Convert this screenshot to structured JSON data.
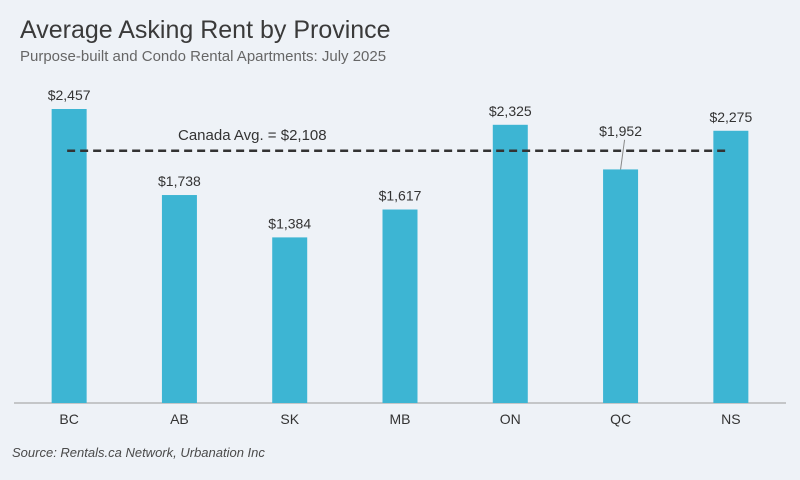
{
  "title": "Average Asking Rent by Province",
  "subtitle": "Purpose-built and Condo Rental Apartments: July 2025",
  "source": "Source: Rentals.ca Network, Urbanation Inc",
  "colors": {
    "bar": "#3db5d3",
    "reference_line": "#333333",
    "axis": "#999999",
    "text": "#333333"
  },
  "chart_data": {
    "type": "bar",
    "categories": [
      "BC",
      "AB",
      "SK",
      "MB",
      "ON",
      "QC",
      "NS"
    ],
    "values": [
      2457,
      1738,
      1384,
      1617,
      2325,
      1952,
      2275
    ],
    "data_labels": [
      "$2,457",
      "$1,738",
      "$1,384",
      "$1,617",
      "$2,325",
      "$1,952",
      "$2,275"
    ],
    "ylim": [
      0,
      2457
    ],
    "grid": false,
    "reference_line": {
      "value": 2108,
      "label": "Canada Avg. = $2,108",
      "style": "dashed"
    }
  }
}
